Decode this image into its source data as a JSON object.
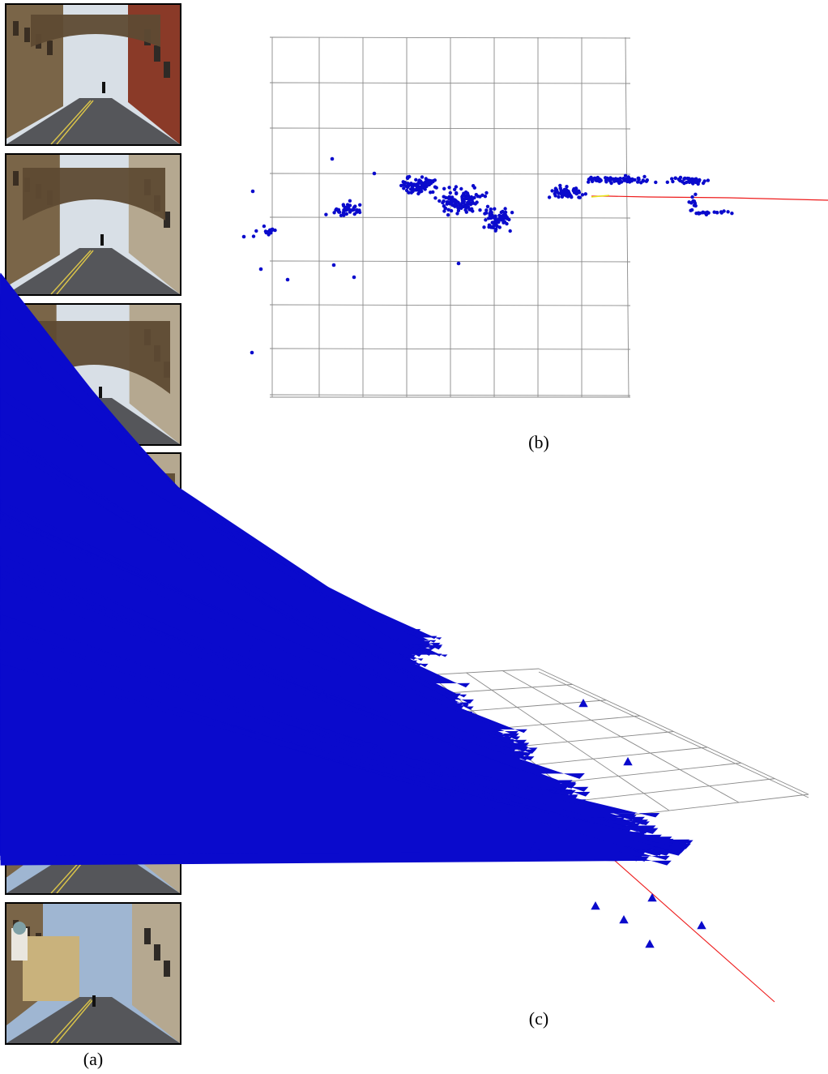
{
  "captions": {
    "a": "(a)",
    "b": "(b)",
    "c": "(c)"
  },
  "frames": [
    {
      "id": "frame-1",
      "content": "street-bridge-far"
    },
    {
      "id": "frame-2",
      "content": "street-bridge-near"
    },
    {
      "id": "frame-3",
      "content": "bridge-arch-close"
    },
    {
      "id": "frame-4",
      "content": "under-arch"
    },
    {
      "id": "frame-5",
      "content": "street-beyond-arch"
    },
    {
      "id": "frame-6",
      "content": "street-domed-building"
    },
    {
      "id": "frame-7",
      "content": "street-cyclists"
    }
  ],
  "colors": {
    "points": "#0a0acc",
    "trajectory": "#ee1c1c",
    "trajectory_start": "#e6e619",
    "grid": "#8a8a8a"
  }
}
